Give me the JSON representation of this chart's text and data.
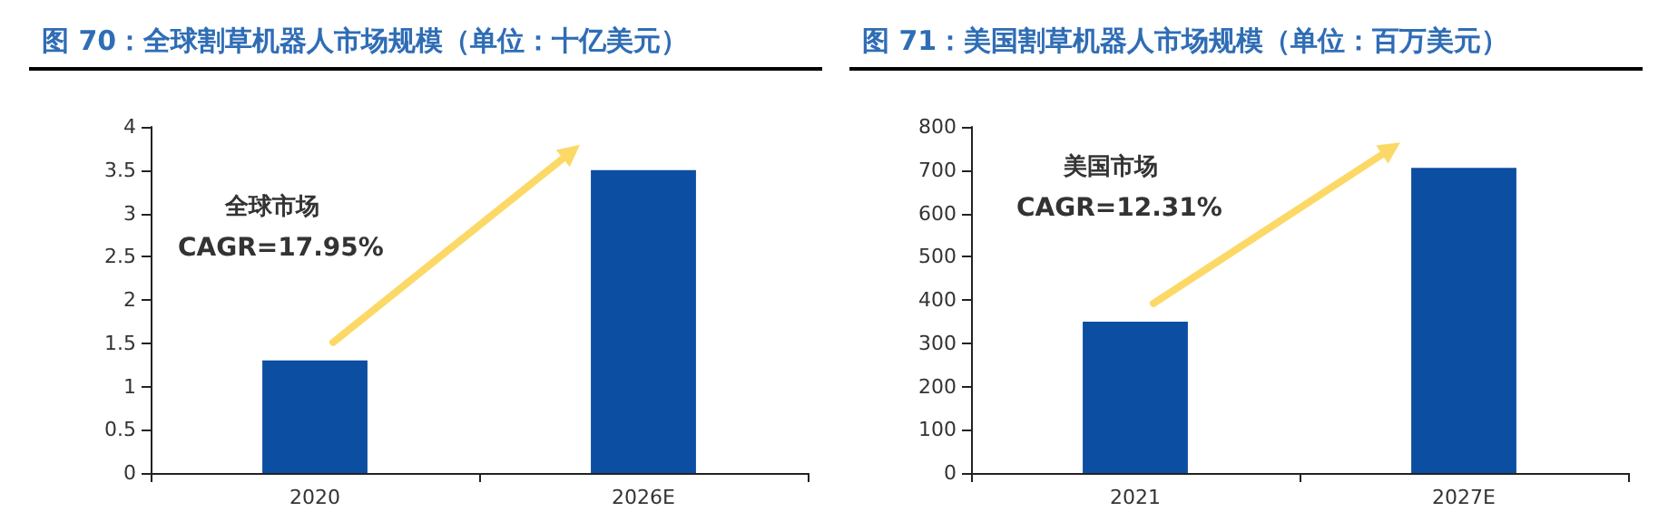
{
  "chart_data": [
    {
      "type": "bar",
      "title": "图 70：全球割草机器人市场规模（单位：十亿美元）",
      "categories": [
        "2020",
        "2026E"
      ],
      "values": [
        1.3,
        3.5
      ],
      "color": "#0b4ea2",
      "ylim": [
        0,
        4
      ],
      "yticks": [
        0,
        0.5,
        1,
        1.5,
        2,
        2.5,
        3,
        3.5,
        4
      ],
      "grid": false,
      "annotations": [
        "全球市场",
        "CAGR=17.95%"
      ]
    },
    {
      "type": "bar",
      "title": "图 71：美国割草机器人市场规模（单位：百万美元）",
      "categories": [
        "2021",
        "2027E"
      ],
      "values": [
        350,
        705
      ],
      "color": "#0b4ea2",
      "ylim": [
        0,
        800
      ],
      "yticks": [
        0,
        100,
        200,
        300,
        400,
        500,
        600,
        700,
        800
      ],
      "grid": false,
      "annotations": [
        "美国市场",
        "CAGR=12.31%"
      ]
    }
  ]
}
